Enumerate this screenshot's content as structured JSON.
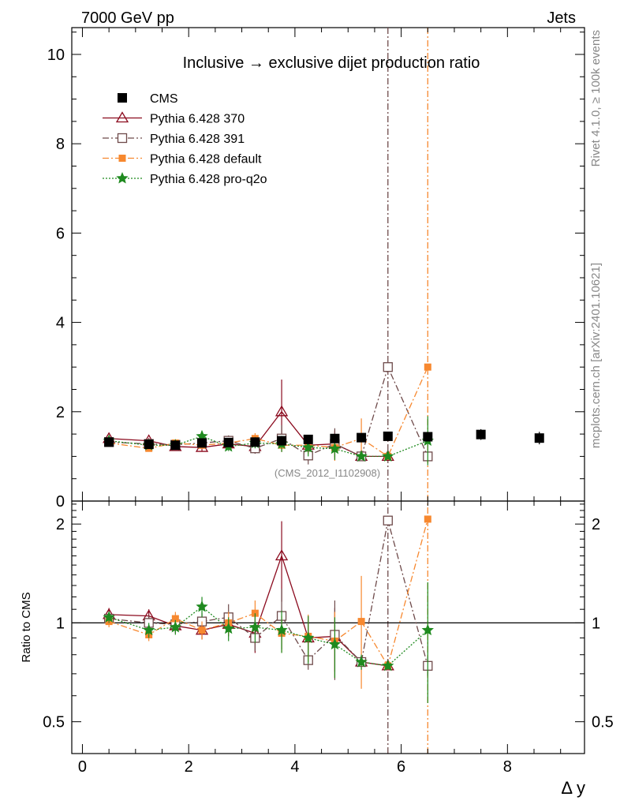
{
  "header": {
    "left": "7000 GeV pp",
    "right": "Jets",
    "side_top": "Rivet 4.1.0, ≥ 100k events",
    "side_bottom": "mcplots.cern.ch [arXiv:2401.10621]",
    "analysis_id": "(CMS_2012_I1102908)"
  },
  "chart_data": {
    "type": "scatter",
    "title": "Inclusive → exclusive dijet production ratio",
    "xlabel": "Δ y",
    "ylabel_main": "",
    "ylabel_ratio": "Ratio to CMS",
    "xlim": [
      -0.2,
      9.45
    ],
    "ylim_main": [
      0,
      10.6
    ],
    "ylim_ratio": [
      0.4,
      2.35
    ],
    "x_ticks": [
      0,
      2,
      4,
      6,
      8
    ],
    "x_tick_labels": [
      "0",
      "2",
      "4",
      "6",
      "8"
    ],
    "y_ticks_main": [
      0,
      2,
      4,
      6,
      8,
      10
    ],
    "y_tick_labels_main": [
      "0",
      "2",
      "4",
      "6",
      "8",
      "10"
    ],
    "y_ticks_ratio": [
      0.5,
      1,
      2
    ],
    "y_tick_labels_ratio": [
      "0.5",
      "1",
      "2"
    ],
    "reference_line": 1,
    "series": [
      {
        "name": "CMS",
        "color": "#000000",
        "marker": "filled-square",
        "line": "none",
        "x": [
          0.5,
          1.25,
          1.75,
          2.25,
          2.75,
          3.25,
          3.75,
          4.25,
          4.75,
          5.25,
          5.75,
          6.5,
          7.5,
          8.6
        ],
        "y": [
          1.32,
          1.27,
          1.25,
          1.3,
          1.31,
          1.32,
          1.35,
          1.38,
          1.4,
          1.42,
          1.45,
          1.44,
          1.49,
          1.41
        ],
        "err": [
          0.06,
          0.05,
          0.05,
          0.05,
          0.05,
          0.05,
          0.05,
          0.06,
          0.07,
          0.08,
          0.1,
          0.1,
          0.12,
          0.14
        ],
        "ratio": [],
        "ratio_err": []
      },
      {
        "name": "Pythia 6.428 370",
        "color": "#8b0a1e",
        "marker": "open-triangle",
        "line": "solid",
        "x": [
          0.5,
          1.25,
          1.75,
          2.25,
          2.75,
          3.25,
          3.75,
          4.25,
          4.75,
          5.25,
          5.75,
          6.5
        ],
        "y": [
          1.4,
          1.35,
          1.22,
          1.2,
          1.28,
          1.22,
          2.0,
          1.25,
          1.28,
          1.0,
          1.0,
          null
        ],
        "err": [
          0.06,
          0.06,
          0.06,
          0.08,
          0.1,
          0.15,
          0.72,
          0.2,
          0.3,
          0.02,
          0.02,
          null
        ],
        "ratio": [
          1.06,
          1.05,
          0.98,
          0.95,
          0.99,
          0.93,
          1.6,
          0.9,
          0.91,
          0.76,
          0.74,
          null
        ],
        "ratio_err": [
          0.05,
          0.05,
          0.05,
          0.06,
          0.08,
          0.12,
          0.44,
          0.15,
          0.2,
          0.02,
          0.02,
          null
        ]
      },
      {
        "name": "Pythia 6.428 391",
        "color": "#6e4a4a",
        "marker": "open-square",
        "line": "dashdot",
        "x": [
          0.5,
          1.25,
          1.75,
          2.25,
          2.75,
          3.25,
          3.75,
          4.25,
          4.75,
          5.25,
          5.75,
          6.5
        ],
        "y": [
          1.32,
          1.28,
          1.26,
          1.3,
          1.35,
          1.18,
          1.4,
          1.02,
          1.28,
          1.0,
          3.0,
          1.0
        ],
        "err": [
          0.05,
          0.06,
          0.06,
          0.08,
          0.12,
          0.12,
          0.3,
          0.2,
          0.35,
          0.02,
          0.05,
          0.05
        ],
        "ratio": [
          1.03,
          1.0,
          0.99,
          1.01,
          1.04,
          0.9,
          1.05,
          0.77,
          0.92,
          0.76,
          2.05,
          0.74
        ],
        "ratio_err": [
          0.04,
          0.05,
          0.05,
          0.06,
          0.1,
          0.08,
          0.22,
          0.05,
          0.25,
          0.02,
          0.05,
          0.05
        ]
      },
      {
        "name": "Pythia 6.428 default",
        "color": "#f7882f",
        "marker": "filled-small-square",
        "line": "dashdot",
        "x": [
          0.5,
          1.25,
          1.75,
          2.25,
          2.75,
          3.25,
          3.75,
          4.25,
          4.75,
          5.25,
          5.75,
          6.5
        ],
        "y": [
          1.3,
          1.18,
          1.3,
          1.25,
          1.3,
          1.4,
          1.25,
          1.25,
          1.2,
          1.4,
          1.0,
          3.0
        ],
        "err": [
          0.05,
          0.05,
          0.06,
          0.08,
          0.1,
          0.12,
          0.15,
          0.2,
          0.3,
          0.45,
          0.02,
          0.05
        ],
        "ratio": [
          1.01,
          0.92,
          1.03,
          0.95,
          1.0,
          1.07,
          0.93,
          0.91,
          0.88,
          1.01,
          0.74,
          2.07
        ],
        "ratio_err": [
          0.04,
          0.04,
          0.05,
          0.06,
          0.08,
          0.1,
          0.12,
          0.15,
          0.2,
          0.38,
          0.02,
          0.05
        ]
      },
      {
        "name": "Pythia 6.428 pro-q2o",
        "color": "#1f8a1f",
        "marker": "open-star",
        "line": "dotted",
        "x": [
          0.5,
          1.25,
          1.75,
          2.25,
          2.75,
          3.25,
          3.75,
          4.25,
          4.75,
          5.25,
          5.75,
          6.5
        ],
        "y": [
          1.35,
          1.25,
          1.25,
          1.45,
          1.22,
          1.3,
          1.28,
          1.2,
          1.17,
          1.0,
          1.0,
          1.35
        ],
        "err": [
          0.05,
          0.06,
          0.06,
          0.12,
          0.1,
          0.12,
          0.18,
          0.2,
          0.25,
          0.05,
          0.02,
          0.55
        ],
        "ratio": [
          1.04,
          0.95,
          0.97,
          1.12,
          0.96,
          0.97,
          0.95,
          0.9,
          0.86,
          0.76,
          0.74,
          0.95
        ],
        "ratio_err": [
          0.04,
          0.05,
          0.05,
          0.08,
          0.08,
          0.1,
          0.14,
          0.15,
          0.18,
          0.04,
          0.02,
          0.38
        ]
      }
    ]
  }
}
